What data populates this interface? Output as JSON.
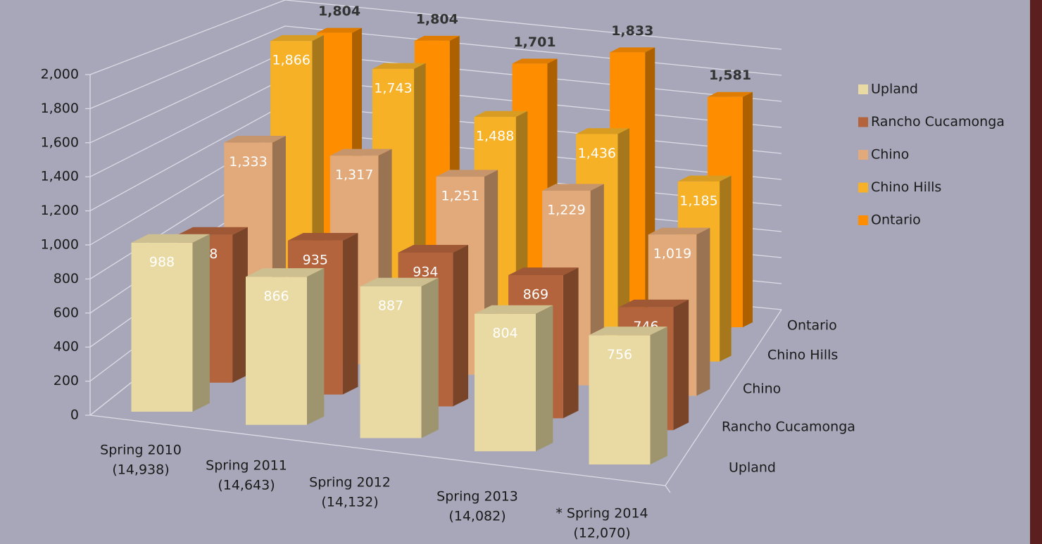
{
  "chart_data": {
    "type": "bar3d",
    "categories": [
      [
        "Spring 2010",
        "(14,938)"
      ],
      [
        "Spring 2011",
        "(14,643)"
      ],
      [
        "Spring  2012",
        "(14,132)"
      ],
      [
        "Spring 2013",
        "(14,082)"
      ],
      [
        "* Spring 2014",
        "(12,070)"
      ]
    ],
    "series": [
      {
        "name": "Upland",
        "color": "#e9d9a2",
        "values": [
          988,
          866,
          887,
          804,
          756
        ],
        "value_labels": [
          "988",
          "866",
          "887",
          "804",
          "756"
        ]
      },
      {
        "name": "Rancho Cucamonga",
        "color": "#b4643c",
        "values": [
          898,
          935,
          934,
          869,
          746
        ],
        "value_labels": [
          "898",
          "935",
          "934",
          "869",
          "746"
        ]
      },
      {
        "name": "Chino",
        "color": "#e2a97a",
        "values": [
          1333,
          1317,
          1251,
          1229,
          1019
        ],
        "value_labels": [
          "1,333",
          "1,317",
          "1,251",
          "1,229",
          "1,019"
        ]
      },
      {
        "name": "Chino Hills",
        "color": "#f6b127",
        "values": [
          1866,
          1743,
          1488,
          1436,
          1185
        ],
        "value_labels": [
          "1,866",
          "1,743",
          "1,488",
          "1,436",
          "1,185"
        ]
      },
      {
        "name": "Ontario",
        "color": "#ff8d00",
        "values": [
          1804,
          1804,
          1701,
          1833,
          1581
        ],
        "value_labels": [
          "1,804",
          "1,804",
          "1,701",
          "1,833",
          "1,581"
        ]
      }
    ],
    "ylim": [
      0,
      2000
    ],
    "yticks": [
      0,
      200,
      400,
      600,
      800,
      {
        "value": 1000,
        "label": "1,000"
      },
      {
        "value": 1200,
        "label": "1,200"
      },
      {
        "value": 1400,
        "label": "1,400"
      },
      {
        "value": 1600,
        "label": "1,600"
      },
      {
        "value": 1800,
        "label": "1,800"
      },
      {
        "value": 2000,
        "label": "2,000"
      }
    ],
    "grid": true,
    "legend": "right"
  }
}
